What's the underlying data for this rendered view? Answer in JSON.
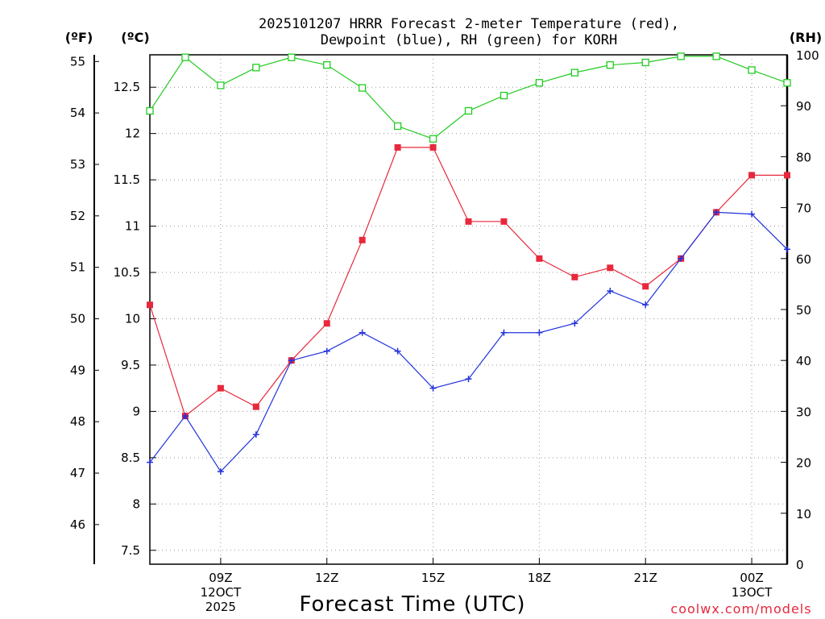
{
  "chart_data": {
    "type": "line",
    "title_line1": "2025101207 HRRR Forecast 2-meter Temperature (red),",
    "title_line2": "Dewpoint (blue), RH (green) for KORH",
    "xlabel": "Forecast Time (UTC)",
    "credit": "coolwx.com/models",
    "units": {
      "fahrenheit": "(ºF)",
      "celsius": "(ºC)",
      "rh": "(RH)"
    },
    "x": [
      7,
      8,
      9,
      10,
      11,
      12,
      13,
      14,
      15,
      16,
      17,
      18,
      19,
      20,
      21,
      22,
      23,
      24,
      25
    ],
    "xlim": [
      7,
      25
    ],
    "x_ticks": [
      {
        "x": 9,
        "lines": [
          "09Z",
          "12OCT",
          "2025"
        ]
      },
      {
        "x": 12,
        "lines": [
          "12Z"
        ]
      },
      {
        "x": 15,
        "lines": [
          "15Z"
        ]
      },
      {
        "x": 18,
        "lines": [
          "18Z"
        ]
      },
      {
        "x": 21,
        "lines": [
          "21Z"
        ]
      },
      {
        "x": 24,
        "lines": [
          "00Z",
          "13OCT"
        ]
      }
    ],
    "celsius_axis": {
      "ylim": [
        7.35,
        12.85
      ],
      "ticks": [
        "7.5",
        "8",
        "8.5",
        "9",
        "9.5",
        "10",
        "10.5",
        "11",
        "11.5",
        "12",
        "12.5"
      ]
    },
    "fahrenheit_axis": {
      "ylim": [
        45.23,
        55.13
      ],
      "ticks": [
        "46",
        "47",
        "48",
        "49",
        "50",
        "51",
        "52",
        "53",
        "54",
        "55"
      ]
    },
    "rh_axis": {
      "ylim": [
        0,
        100
      ],
      "ticks": [
        "0",
        "10",
        "20",
        "30",
        "40",
        "50",
        "60",
        "70",
        "80",
        "90",
        "100"
      ]
    },
    "series": [
      {
        "name": "Temperature",
        "axis": "celsius",
        "color": "#e8283c",
        "marker": "filled-square",
        "values": [
          10.15,
          8.95,
          9.25,
          9.05,
          9.55,
          9.95,
          10.85,
          11.85,
          11.85,
          11.05,
          11.05,
          10.65,
          10.45,
          10.55,
          10.35,
          10.65,
          11.15,
          11.55,
          11.55
        ]
      },
      {
        "name": "Dewpoint",
        "axis": "celsius",
        "color": "#2233dd",
        "marker": "plus",
        "values": [
          8.45,
          8.95,
          8.35,
          8.75,
          9.55,
          9.65,
          9.85,
          9.65,
          9.25,
          9.35,
          9.85,
          9.85,
          9.95,
          10.3,
          10.15,
          10.65,
          11.15,
          11.13,
          10.75
        ]
      },
      {
        "name": "RH",
        "axis": "rh",
        "color": "#22cc22",
        "marker": "open-square",
        "values": [
          89,
          99.5,
          94,
          97.5,
          99.5,
          98,
          93.5,
          86,
          83.5,
          89,
          92,
          94.5,
          96.5,
          98,
          98.5,
          99.7,
          99.7,
          97,
          94.5
        ]
      }
    ]
  }
}
